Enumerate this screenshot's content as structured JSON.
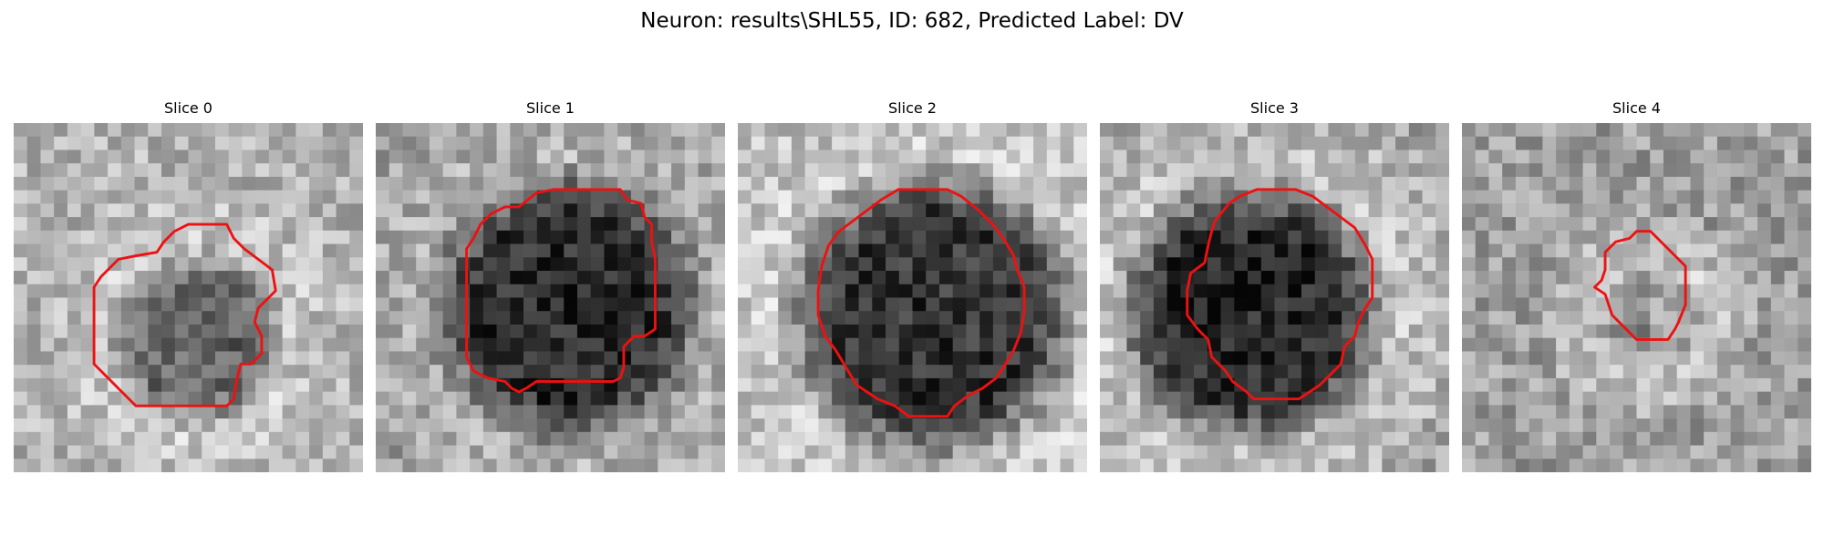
{
  "title": "Neuron: results\\SHL55, ID: 682, Predicted Label: DV",
  "contour_color": "#ee1111",
  "slices": [
    {
      "title": "Slice 0",
      "grid_seed": 11,
      "center_brightness": 0.4,
      "ring_brightness": 0.78,
      "background_brightness": 0.7,
      "dark_radius": 4.5,
      "blob_center": [
        5.2,
        6.2
      ],
      "dark_spot": [
        5.8,
        6.0
      ],
      "contour": [
        [
          4.1,
          3.7
        ],
        [
          4.3,
          3.4
        ],
        [
          4.6,
          3.1
        ],
        [
          5.0,
          2.9
        ],
        [
          5.5,
          2.9
        ],
        [
          6.1,
          2.9
        ],
        [
          6.3,
          3.3
        ],
        [
          6.6,
          3.6
        ],
        [
          7.0,
          3.9
        ],
        [
          7.4,
          4.2
        ],
        [
          7.5,
          4.8
        ],
        [
          7.0,
          5.3
        ],
        [
          6.9,
          5.7
        ],
        [
          7.1,
          6.1
        ],
        [
          7.1,
          6.6
        ],
        [
          6.8,
          6.9
        ],
        [
          6.5,
          6.9
        ],
        [
          6.4,
          7.3
        ],
        [
          6.3,
          7.9
        ],
        [
          6.1,
          8.1
        ],
        [
          5.5,
          8.1
        ],
        [
          4.8,
          8.1
        ],
        [
          3.8,
          8.1
        ],
        [
          3.5,
          8.1
        ],
        [
          3.0,
          7.6
        ],
        [
          2.6,
          7.2
        ],
        [
          2.3,
          6.9
        ],
        [
          2.3,
          6.1
        ],
        [
          2.3,
          5.4
        ],
        [
          2.3,
          4.7
        ],
        [
          2.5,
          4.4
        ],
        [
          3.0,
          3.9
        ],
        [
          3.5,
          3.8
        ]
      ]
    },
    {
      "title": "Slice 1",
      "grid_seed": 23,
      "center_brightness": 0.18,
      "ring_brightness": 0.7,
      "background_brightness": 0.6,
      "dark_radius": 7.0,
      "blob_center": [
        5.5,
        5.3
      ],
      "dark_spot": [
        5.8,
        5.3
      ],
      "contour": [
        [
          4.1,
          2.4
        ],
        [
          4.6,
          2.0
        ],
        [
          5.1,
          1.9
        ],
        [
          6.0,
          1.9
        ],
        [
          7.0,
          1.9
        ],
        [
          7.2,
          2.2
        ],
        [
          7.6,
          2.3
        ],
        [
          7.7,
          2.7
        ],
        [
          7.9,
          2.9
        ],
        [
          7.9,
          3.4
        ],
        [
          8.0,
          3.9
        ],
        [
          8.0,
          4.7
        ],
        [
          8.0,
          5.5
        ],
        [
          8.0,
          5.9
        ],
        [
          7.7,
          6.1
        ],
        [
          7.4,
          6.1
        ],
        [
          7.1,
          6.4
        ],
        [
          7.1,
          7.0
        ],
        [
          7.0,
          7.3
        ],
        [
          6.8,
          7.4
        ],
        [
          6.3,
          7.4
        ],
        [
          5.4,
          7.4
        ],
        [
          4.6,
          7.4
        ],
        [
          4.3,
          7.6
        ],
        [
          4.1,
          7.7
        ],
        [
          3.9,
          7.6
        ],
        [
          3.7,
          7.4
        ],
        [
          3.2,
          7.3
        ],
        [
          2.8,
          7.1
        ],
        [
          2.6,
          6.7
        ],
        [
          2.6,
          6.0
        ],
        [
          2.6,
          5.2
        ],
        [
          2.6,
          4.2
        ],
        [
          2.6,
          3.6
        ],
        [
          2.8,
          3.3
        ],
        [
          3.0,
          2.9
        ],
        [
          3.3,
          2.6
        ],
        [
          3.7,
          2.4
        ]
      ]
    },
    {
      "title": "Slice 2",
      "grid_seed": 37,
      "center_brightness": 0.2,
      "ring_brightness": 0.8,
      "background_brightness": 0.72,
      "dark_radius": 7.5,
      "blob_center": [
        5.6,
        5.5
      ],
      "dark_spot": [
        5.5,
        5.8
      ],
      "contour": [
        [
          3.7,
          2.5
        ],
        [
          4.1,
          2.2
        ],
        [
          4.6,
          1.9
        ],
        [
          5.2,
          1.9
        ],
        [
          6.0,
          1.9
        ],
        [
          6.4,
          2.1
        ],
        [
          6.9,
          2.5
        ],
        [
          7.3,
          2.9
        ],
        [
          7.6,
          3.3
        ],
        [
          7.9,
          3.8
        ],
        [
          8.0,
          4.2
        ],
        [
          8.2,
          4.7
        ],
        [
          8.2,
          5.4
        ],
        [
          8.1,
          6.0
        ],
        [
          7.9,
          6.5
        ],
        [
          7.6,
          7.0
        ],
        [
          7.4,
          7.3
        ],
        [
          7.0,
          7.6
        ],
        [
          6.6,
          7.8
        ],
        [
          6.2,
          8.1
        ],
        [
          6.0,
          8.4
        ],
        [
          5.5,
          8.4
        ],
        [
          4.9,
          8.4
        ],
        [
          4.5,
          8.1
        ],
        [
          4.0,
          7.9
        ],
        [
          3.4,
          7.5
        ],
        [
          3.1,
          7.0
        ],
        [
          2.8,
          6.5
        ],
        [
          2.5,
          6.1
        ],
        [
          2.3,
          5.5
        ],
        [
          2.3,
          4.8
        ],
        [
          2.4,
          4.1
        ],
        [
          2.6,
          3.5
        ],
        [
          2.9,
          3.1
        ],
        [
          3.3,
          2.8
        ]
      ]
    },
    {
      "title": "Slice 3",
      "grid_seed": 53,
      "center_brightness": 0.16,
      "ring_brightness": 0.78,
      "background_brightness": 0.62,
      "dark_radius": 6.8,
      "blob_center": [
        4.3,
        5.4
      ],
      "dark_spot": [
        4.3,
        5.0
      ],
      "contour": [
        [
          3.3,
          2.8
        ],
        [
          3.7,
          2.3
        ],
        [
          4.0,
          2.1
        ],
        [
          4.5,
          1.9
        ],
        [
          5.0,
          1.9
        ],
        [
          5.6,
          1.9
        ],
        [
          6.1,
          2.1
        ],
        [
          6.5,
          2.4
        ],
        [
          6.9,
          2.7
        ],
        [
          7.3,
          3.0
        ],
        [
          7.6,
          3.5
        ],
        [
          7.8,
          3.9
        ],
        [
          7.8,
          4.4
        ],
        [
          7.8,
          5.0
        ],
        [
          7.6,
          5.3
        ],
        [
          7.4,
          5.7
        ],
        [
          7.3,
          6.1
        ],
        [
          7.0,
          6.4
        ],
        [
          6.9,
          6.9
        ],
        [
          6.6,
          7.2
        ],
        [
          6.3,
          7.5
        ],
        [
          6.0,
          7.7
        ],
        [
          5.7,
          7.9
        ],
        [
          5.2,
          7.9
        ],
        [
          4.4,
          7.9
        ],
        [
          4.2,
          7.7
        ],
        [
          3.8,
          7.4
        ],
        [
          3.6,
          7.1
        ],
        [
          3.2,
          6.7
        ],
        [
          3.1,
          6.2
        ],
        [
          2.8,
          5.9
        ],
        [
          2.5,
          5.5
        ],
        [
          2.5,
          4.8
        ],
        [
          2.6,
          4.3
        ],
        [
          3.0,
          4.0
        ],
        [
          3.1,
          3.5
        ],
        [
          3.2,
          3.1
        ]
      ]
    },
    {
      "title": "Slice 4",
      "grid_seed": 71,
      "center_brightness": 0.62,
      "ring_brightness": 0.8,
      "background_brightness": 0.62,
      "dark_radius": 3.0,
      "blob_center": [
        5.3,
        5.6
      ],
      "dark_spot": [
        5.0,
        6.1
      ],
      "contour": [
        [
          4.4,
          3.4
        ],
        [
          4.8,
          3.3
        ],
        [
          5.0,
          3.1
        ],
        [
          5.4,
          3.1
        ],
        [
          5.7,
          3.4
        ],
        [
          6.0,
          3.7
        ],
        [
          6.4,
          4.1
        ],
        [
          6.4,
          4.6
        ],
        [
          6.4,
          5.2
        ],
        [
          6.2,
          5.7
        ],
        [
          6.1,
          5.9
        ],
        [
          5.9,
          6.2
        ],
        [
          5.6,
          6.2
        ],
        [
          5.2,
          6.2
        ],
        [
          5.0,
          6.2
        ],
        [
          4.8,
          6.0
        ],
        [
          4.5,
          5.7
        ],
        [
          4.3,
          5.5
        ],
        [
          4.2,
          5.2
        ],
        [
          4.1,
          4.9
        ],
        [
          3.8,
          4.7
        ],
        [
          4.0,
          4.5
        ],
        [
          4.1,
          4.2
        ],
        [
          4.1,
          3.7
        ]
      ]
    }
  ]
}
